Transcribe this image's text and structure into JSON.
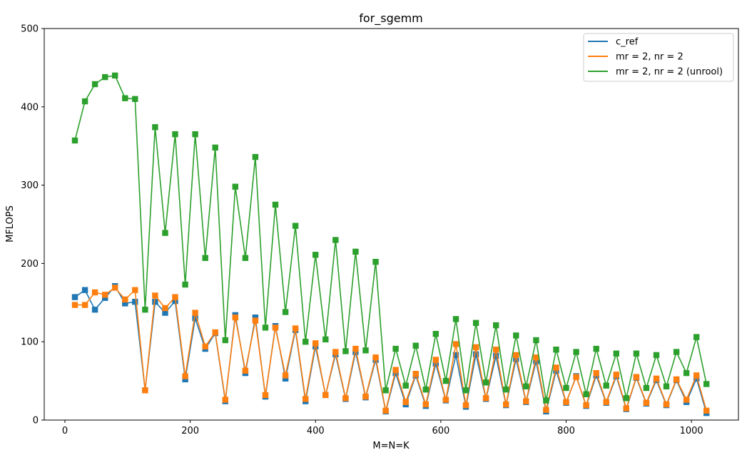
{
  "chart_data": {
    "type": "line",
    "title": "for_sgemm",
    "xlabel": "M=N=K",
    "ylabel": "MFLOPS",
    "xlim": [
      -33,
      1075
    ],
    "ylim": [
      0,
      500
    ],
    "xticks": [
      0,
      200,
      400,
      600,
      800,
      1000
    ],
    "yticks": [
      0,
      100,
      200,
      300,
      400,
      500
    ],
    "legend_position": "top-right",
    "grid": false,
    "marker": "square",
    "x": [
      16,
      32,
      48,
      64,
      80,
      96,
      112,
      128,
      144,
      160,
      176,
      192,
      208,
      224,
      240,
      256,
      272,
      288,
      304,
      320,
      336,
      352,
      368,
      384,
      400,
      416,
      432,
      448,
      464,
      480,
      496,
      512,
      528,
      544,
      560,
      576,
      592,
      608,
      624,
      640,
      656,
      672,
      688,
      704,
      720,
      736,
      752,
      768,
      784,
      800,
      816,
      832,
      848,
      864,
      880,
      896,
      912,
      928,
      944,
      960,
      976,
      992,
      1008,
      1024
    ],
    "series": [
      {
        "name": "c_ref",
        "color": "#1f77b4",
        "values": [
          157,
          166,
          141,
          156,
          171,
          149,
          151,
          38,
          151,
          137,
          152,
          52,
          130,
          91,
          111,
          24,
          134,
          60,
          131,
          30,
          120,
          53,
          115,
          24,
          94,
          32,
          84,
          27,
          87,
          29,
          77,
          11,
          60,
          20,
          57,
          18,
          72,
          25,
          83,
          17,
          84,
          27,
          82,
          19,
          78,
          23,
          75,
          11,
          63,
          22,
          56,
          18,
          57,
          22,
          56,
          14,
          54,
          21,
          51,
          19,
          51,
          23,
          53,
          9
        ]
      },
      {
        "name": "mr = 2, nr = 2",
        "color": "#ff7f0e",
        "values": [
          147,
          147,
          163,
          160,
          169,
          154,
          166,
          38,
          159,
          143,
          157,
          56,
          137,
          94,
          112,
          26,
          131,
          63,
          127,
          32,
          118,
          57,
          117,
          27,
          98,
          32,
          87,
          28,
          91,
          30,
          80,
          12,
          64,
          23,
          59,
          20,
          77,
          26,
          97,
          19,
          93,
          28,
          90,
          20,
          83,
          24,
          80,
          13,
          67,
          23,
          55,
          19,
          60,
          23,
          58,
          15,
          55,
          22,
          53,
          20,
          52,
          26,
          57,
          12
        ]
      },
      {
        "name": "mr = 2, nr = 2 (unrool)",
        "color": "#2ca02c",
        "values": [
          357,
          407,
          429,
          438,
          440,
          411,
          410,
          141,
          374,
          239,
          365,
          173,
          365,
          207,
          348,
          102,
          298,
          207,
          336,
          118,
          275,
          138,
          248,
          100,
          211,
          103,
          230,
          88,
          215,
          89,
          202,
          38,
          91,
          44,
          95,
          39,
          110,
          50,
          129,
          38,
          124,
          48,
          121,
          39,
          108,
          43,
          102,
          25,
          90,
          41,
          87,
          33,
          91,
          44,
          85,
          28,
          85,
          41,
          83,
          43,
          87,
          60,
          106,
          46
        ]
      }
    ]
  }
}
